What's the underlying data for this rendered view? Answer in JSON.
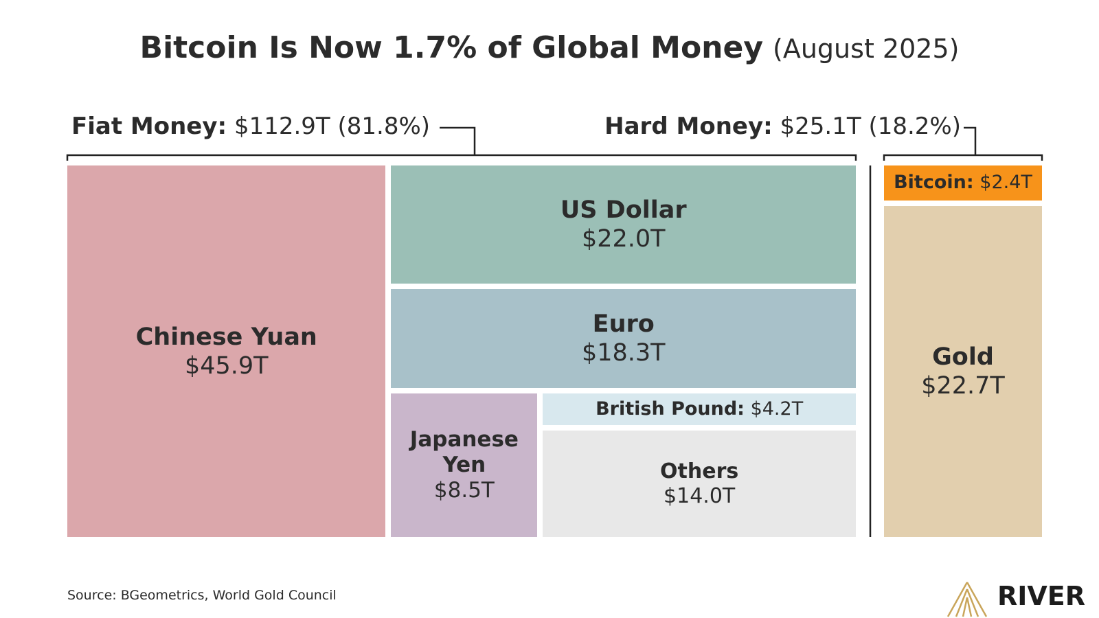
{
  "chart_data": {
    "type": "treemap",
    "title": "Bitcoin Is Now 1.7% of Global Money",
    "subtitle": "(August 2025)",
    "groups": [
      {
        "name": "Fiat Money:",
        "value": 112.9,
        "value_label": "$112.9T",
        "share": 81.8,
        "share_label": "(81.8%)",
        "items": [
          {
            "name": "Chinese Yuan",
            "value": 45.9,
            "value_label": "$45.9T",
            "color": "#dba7ab"
          },
          {
            "name": "US Dollar",
            "value": 22.0,
            "value_label": "$22.0T",
            "color": "#9bbfb6"
          },
          {
            "name": "Euro",
            "value": 18.3,
            "value_label": "$18.3T",
            "color": "#a8c1c9"
          },
          {
            "name": "Japanese Yen",
            "value": 8.5,
            "value_label": "$8.5T",
            "color": "#c9b6cb"
          },
          {
            "name": "British Pound:",
            "value": 4.2,
            "value_label": "$4.2T",
            "color": "#d8e8ee"
          },
          {
            "name": "Others",
            "value": 14.0,
            "value_label": "$14.0T",
            "color": "#e8e8e8"
          }
        ]
      },
      {
        "name": "Hard Money:",
        "value": 25.1,
        "value_label": "$25.1T",
        "share": 18.2,
        "share_label": "(18.2%)",
        "items": [
          {
            "name": "Bitcoin:",
            "value": 2.4,
            "value_label": "$2.4T",
            "color": "#f7931a"
          },
          {
            "name": "Gold",
            "value": 22.7,
            "value_label": "$22.7T",
            "color": "#e2cfae"
          }
        ]
      }
    ],
    "source": "Source: BGeometrics, World Gold Council",
    "logo": "RIVER"
  }
}
